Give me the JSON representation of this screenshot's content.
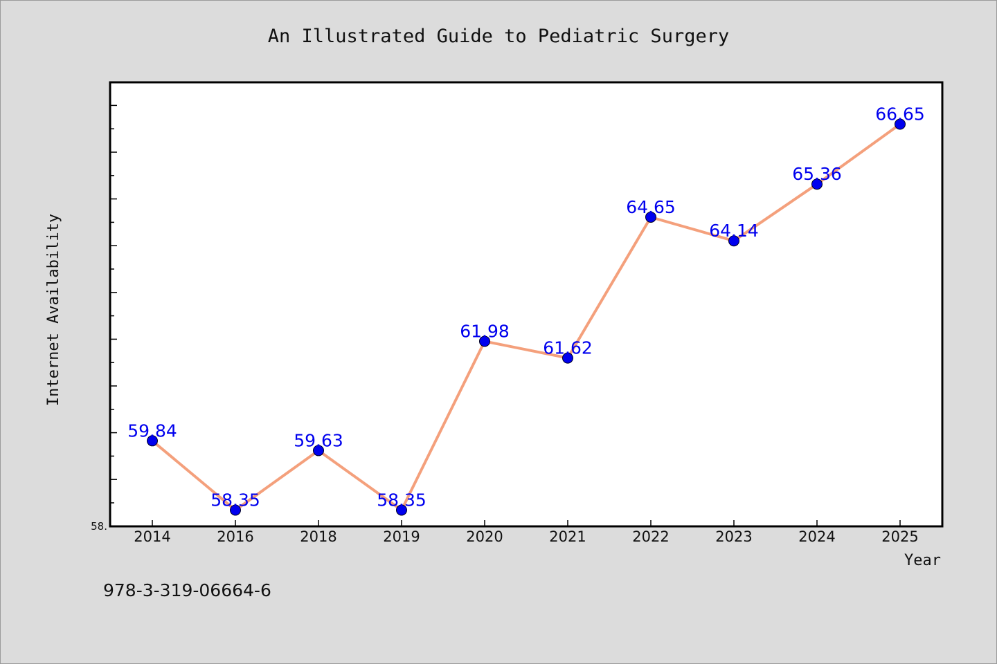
{
  "chart_data": {
    "type": "line",
    "title": "An Illustrated Guide to Pediatric Surgery",
    "xlabel": "Year",
    "ylabel": "Internet Availability",
    "categories": [
      "2014",
      "2016",
      "2018",
      "2019",
      "2020",
      "2021",
      "2022",
      "2023",
      "2024",
      "2025"
    ],
    "series": [
      {
        "values": [
          59.84,
          58.35,
          59.63,
          58.35,
          61.98,
          61.62,
          64.65,
          64.14,
          65.36,
          66.65
        ],
        "labels": [
          "59.84",
          "58.35",
          "59.63",
          "58.35",
          "61.98",
          "61.62",
          "64.65",
          "64.14",
          "65.36",
          "66.65"
        ]
      }
    ],
    "ylim": [
      58.0,
      67.55
    ],
    "ytick_label": "58.",
    "grid": false,
    "line_color": "#f4a07c",
    "marker_color": "#0000ee",
    "label_color": "#0000ee"
  },
  "footer": {
    "isbn": "978-3-319-06664-6"
  }
}
